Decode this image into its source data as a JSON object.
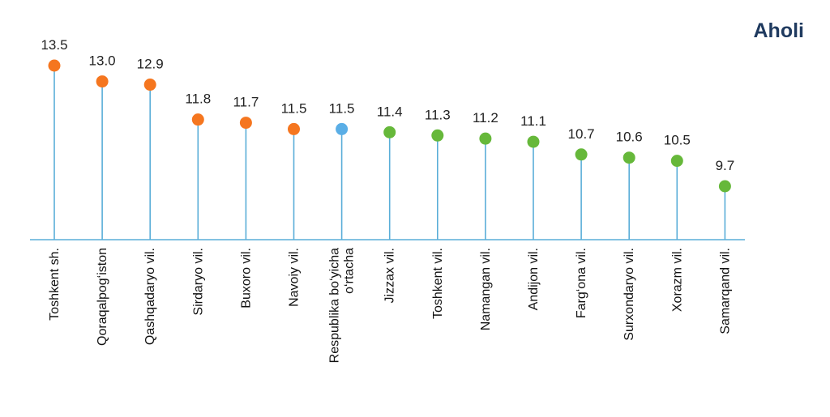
{
  "brand": {
    "label": "Aholi"
  },
  "colors": {
    "stem": "#5aaed8",
    "axis": "#5aaed8",
    "orange": "#f5761f",
    "blue": "#5aaee6",
    "green": "#66b83a"
  },
  "chart_data": {
    "type": "lollipop",
    "title": "",
    "xlabel": "",
    "ylabel": "",
    "ylim": [
      0,
      13.5
    ],
    "grid": false,
    "categories": [
      [
        "Toshkent sh."
      ],
      [
        "Qoraqalpog‘iston"
      ],
      [
        "Qashqadaryo vil."
      ],
      [
        "Sirdaryo vil."
      ],
      [
        "Buxoro vil."
      ],
      [
        "Navoiy vil."
      ],
      [
        "Respublika bo‘yicha",
        "o‘rtacha"
      ],
      [
        "Jizzax vil."
      ],
      [
        "Toshkent vil."
      ],
      [
        "Namangan vil."
      ],
      [
        "Andijon vil."
      ],
      [
        "Farg‘ona vil."
      ],
      [
        "Surxondaryo vil."
      ],
      [
        "Xorazm vil."
      ],
      [
        "Samarqand vil."
      ]
    ],
    "values": [
      13.5,
      13.0,
      12.9,
      11.8,
      11.7,
      11.5,
      11.5,
      11.4,
      11.3,
      11.2,
      11.1,
      10.7,
      10.6,
      10.5,
      9.7
    ],
    "value_labels": [
      "13.5",
      "13.0",
      "12.9",
      "11.8",
      "11.7",
      "11.5",
      "11.5",
      "11.4",
      "11.3",
      "11.2",
      "11.1",
      "10.7",
      "10.6",
      "10.5",
      "9.7"
    ],
    "point_colors": [
      "orange",
      "orange",
      "orange",
      "orange",
      "orange",
      "orange",
      "blue",
      "green",
      "green",
      "green",
      "green",
      "green",
      "green",
      "green",
      "green"
    ]
  }
}
